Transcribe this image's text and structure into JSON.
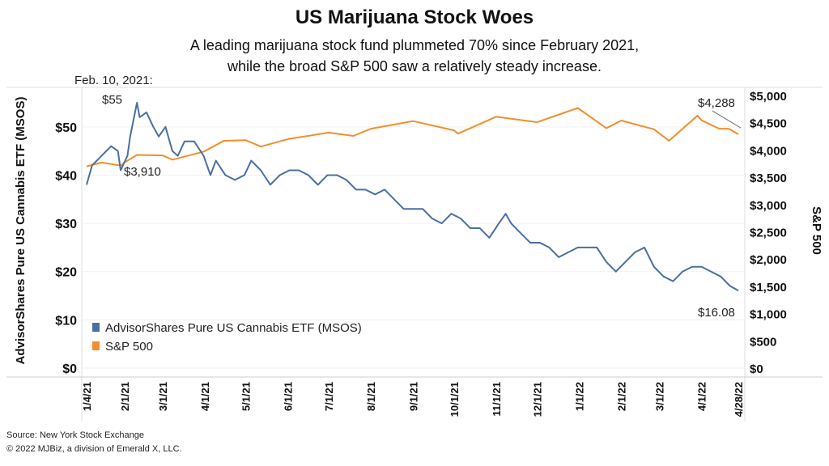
{
  "header": {
    "title": "US Marijuana Stock Woes",
    "subtitle_line1": "A leading marijuana stock fund plummeted 70% since February 2021,",
    "subtitle_line2": "while the broad S&P 500 saw a relatively steady increase."
  },
  "footer": {
    "source": "Source: New York Stock Exchange",
    "copyright": "© 2022 MJBiz, a division of Emerald X, LLC."
  },
  "chart_data": {
    "type": "line",
    "ylabel": "AdvisorShares Pure US Cannabis ETF (MSOS)",
    "y2label": "S&P 500",
    "ylim": [
      0,
      55
    ],
    "y2lim": [
      0,
      5000
    ],
    "yticks": [
      "$0",
      "$10",
      "$20",
      "$30",
      "$40",
      "$50"
    ],
    "y2ticks": [
      "$0",
      "$500",
      "$1,000",
      "$1,500",
      "$2,000",
      "$2,500",
      "$3,000",
      "$3,500",
      "$4,000",
      "$4,500",
      "$5,000"
    ],
    "xticks": [
      "1/4/21",
      "2/1/21",
      "3/1/21",
      "4/1/21",
      "5/1/21",
      "6/1/21",
      "7/1/21",
      "8/1/21",
      "9/1/21",
      "10/1/21",
      "11/1/21",
      "12/1/21",
      "1/1/22",
      "2/1/22",
      "3/1/22",
      "4/1/22",
      "4/28/22"
    ],
    "legend": "bottom-left",
    "colors": {
      "msos": "#4a6fa0",
      "sp500": "#f28e2b"
    },
    "annotations": [
      {
        "text": "Feb. 10, 2021:",
        "date": "2021-02-10"
      },
      {
        "text": "$55",
        "date": "2021-02-10",
        "series": "msos"
      },
      {
        "text": "$3,910",
        "date": "2021-02-10",
        "series": "sp500"
      },
      {
        "text": "$4,288",
        "date": "2022-03-29",
        "series": "sp500"
      },
      {
        "text": "$16.08",
        "date": "2022-04-28",
        "series": "msos"
      }
    ],
    "series": [
      {
        "name": "AdvisorShares Pure US Cannabis ETF (MSOS)",
        "axis": "left",
        "points": [
          [
            "2021-01-04",
            38
          ],
          [
            "2021-01-08",
            42
          ],
          [
            "2021-01-15",
            44
          ],
          [
            "2021-01-22",
            46
          ],
          [
            "2021-01-27",
            45
          ],
          [
            "2021-01-29",
            41
          ],
          [
            "2021-02-03",
            44
          ],
          [
            "2021-02-05",
            48
          ],
          [
            "2021-02-10",
            55
          ],
          [
            "2021-02-12",
            52
          ],
          [
            "2021-02-17",
            53
          ],
          [
            "2021-02-22",
            50
          ],
          [
            "2021-02-26",
            48
          ],
          [
            "2021-03-03",
            50
          ],
          [
            "2021-03-08",
            45
          ],
          [
            "2021-03-12",
            44
          ],
          [
            "2021-03-17",
            47
          ],
          [
            "2021-03-24",
            47
          ],
          [
            "2021-03-31",
            44
          ],
          [
            "2021-04-05",
            40
          ],
          [
            "2021-04-09",
            43
          ],
          [
            "2021-04-16",
            40
          ],
          [
            "2021-04-23",
            39
          ],
          [
            "2021-04-30",
            40
          ],
          [
            "2021-05-05",
            43
          ],
          [
            "2021-05-12",
            41
          ],
          [
            "2021-05-19",
            38
          ],
          [
            "2021-05-26",
            40
          ],
          [
            "2021-06-02",
            41
          ],
          [
            "2021-06-09",
            41
          ],
          [
            "2021-06-16",
            40
          ],
          [
            "2021-06-23",
            38
          ],
          [
            "2021-06-30",
            40
          ],
          [
            "2021-07-07",
            40
          ],
          [
            "2021-07-14",
            39
          ],
          [
            "2021-07-21",
            37
          ],
          [
            "2021-07-28",
            37
          ],
          [
            "2021-08-04",
            36
          ],
          [
            "2021-08-11",
            37
          ],
          [
            "2021-08-18",
            35
          ],
          [
            "2021-08-25",
            33
          ],
          [
            "2021-09-01",
            33
          ],
          [
            "2021-09-08",
            33
          ],
          [
            "2021-09-15",
            31
          ],
          [
            "2021-09-22",
            30
          ],
          [
            "2021-09-29",
            32
          ],
          [
            "2021-10-06",
            31
          ],
          [
            "2021-10-13",
            29
          ],
          [
            "2021-10-20",
            29
          ],
          [
            "2021-10-27",
            27
          ],
          [
            "2021-11-03",
            30
          ],
          [
            "2021-11-08",
            32
          ],
          [
            "2021-11-12",
            30
          ],
          [
            "2021-11-19",
            28
          ],
          [
            "2021-11-26",
            26
          ],
          [
            "2021-12-03",
            26
          ],
          [
            "2021-12-10",
            25
          ],
          [
            "2021-12-17",
            23
          ],
          [
            "2021-12-24",
            24
          ],
          [
            "2021-12-31",
            25
          ],
          [
            "2022-01-07",
            25
          ],
          [
            "2022-01-14",
            25
          ],
          [
            "2022-01-21",
            22
          ],
          [
            "2022-01-28",
            20
          ],
          [
            "2022-02-04",
            22
          ],
          [
            "2022-02-11",
            24
          ],
          [
            "2022-02-18",
            25
          ],
          [
            "2022-02-25",
            21
          ],
          [
            "2022-03-04",
            19
          ],
          [
            "2022-03-11",
            18
          ],
          [
            "2022-03-18",
            20
          ],
          [
            "2022-03-25",
            21
          ],
          [
            "2022-04-01",
            21
          ],
          [
            "2022-04-08",
            20
          ],
          [
            "2022-04-15",
            19
          ],
          [
            "2022-04-22",
            17
          ],
          [
            "2022-04-28",
            16.08
          ]
        ]
      },
      {
        "name": "S&P 500",
        "axis": "right",
        "points": [
          [
            "2021-01-04",
            3700
          ],
          [
            "2021-01-15",
            3770
          ],
          [
            "2021-01-29",
            3714
          ],
          [
            "2021-02-01",
            3774
          ],
          [
            "2021-02-10",
            3910
          ],
          [
            "2021-03-01",
            3900
          ],
          [
            "2021-03-08",
            3821
          ],
          [
            "2021-03-31",
            3970
          ],
          [
            "2021-04-15",
            4170
          ],
          [
            "2021-05-01",
            4180
          ],
          [
            "2021-05-12",
            4063
          ],
          [
            "2021-06-01",
            4200
          ],
          [
            "2021-07-01",
            4320
          ],
          [
            "2021-07-19",
            4258
          ],
          [
            "2021-08-01",
            4390
          ],
          [
            "2021-09-01",
            4530
          ],
          [
            "2021-10-01",
            4360
          ],
          [
            "2021-10-04",
            4300
          ],
          [
            "2021-11-01",
            4610
          ],
          [
            "2021-12-01",
            4510
          ],
          [
            "2021-12-31",
            4770
          ],
          [
            "2022-01-21",
            4400
          ],
          [
            "2022-02-01",
            4540
          ],
          [
            "2022-02-25",
            4380
          ],
          [
            "2022-03-08",
            4170
          ],
          [
            "2022-03-29",
            4630
          ],
          [
            "2022-04-01",
            4545
          ],
          [
            "2022-04-14",
            4390
          ],
          [
            "2022-04-21",
            4390
          ],
          [
            "2022-04-28",
            4288
          ]
        ]
      }
    ]
  }
}
